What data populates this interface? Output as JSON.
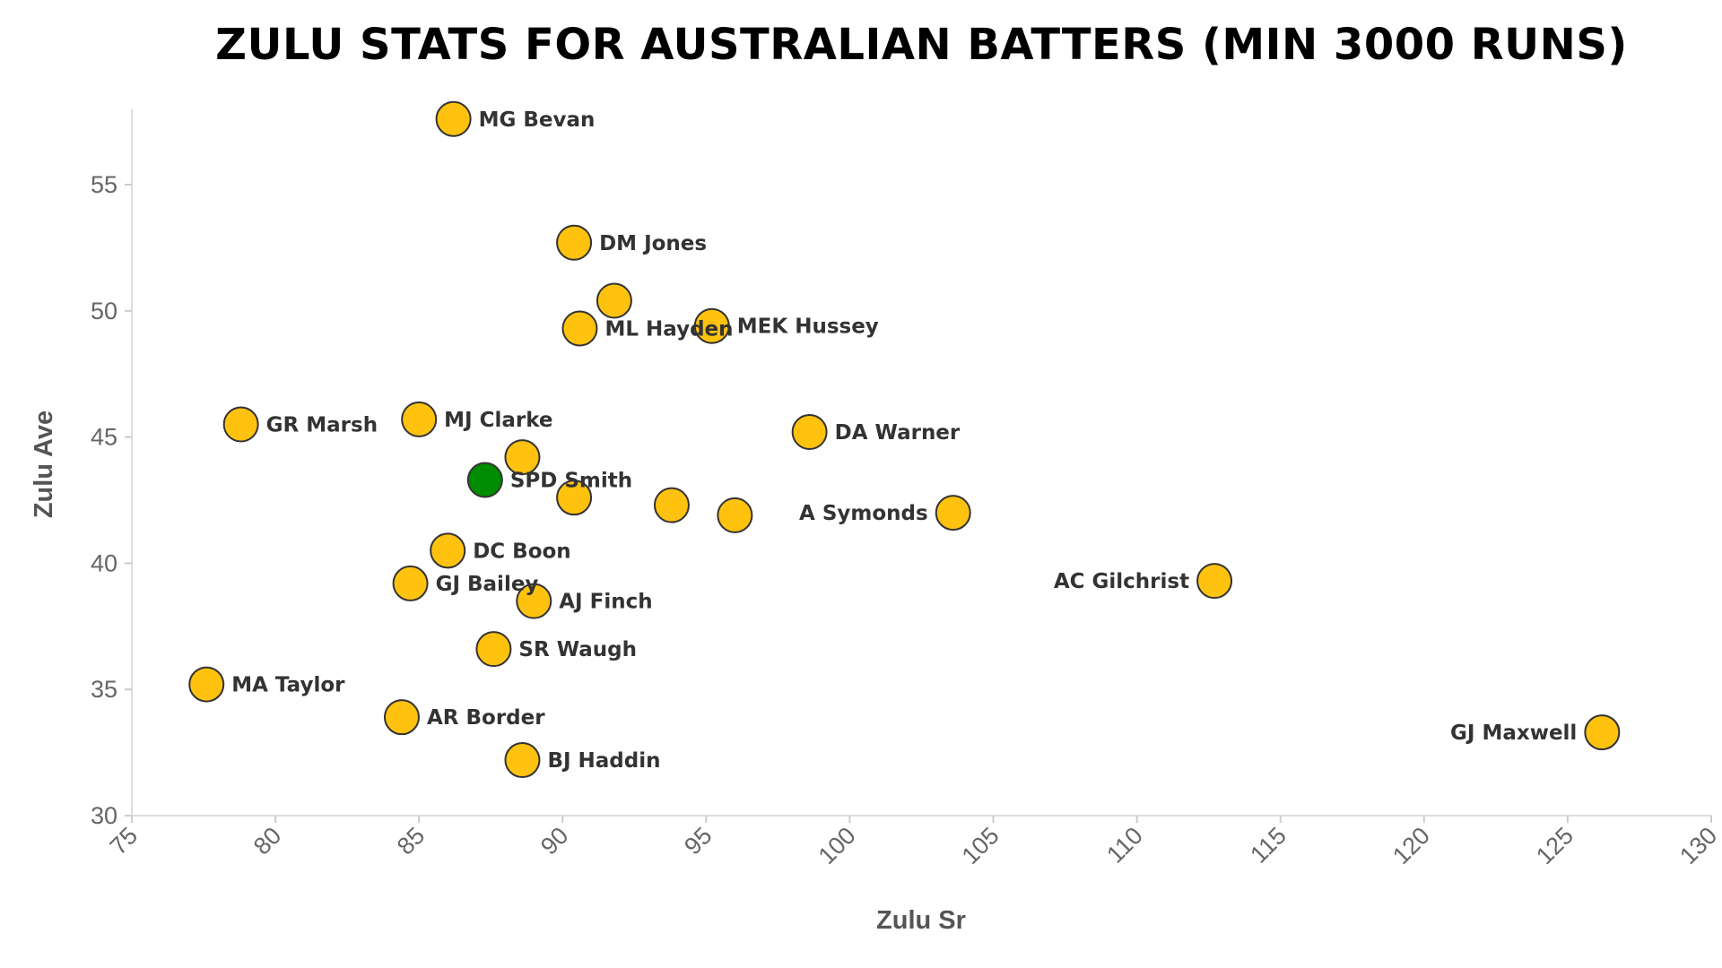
{
  "chart_data": {
    "type": "scatter",
    "title": "Zulu Stats for Australian Batters (min 3000 runs)",
    "xlabel": "Zulu Sr",
    "ylabel": "Zulu Ave",
    "xlim": [
      75,
      130
    ],
    "ylim": [
      30,
      58
    ],
    "xticks": [
      75,
      80,
      85,
      90,
      95,
      100,
      105,
      110,
      115,
      120,
      125,
      130
    ],
    "yticks": [
      30,
      35,
      40,
      45,
      50,
      55
    ],
    "grid": false,
    "colors": {
      "default": "#FFC20E",
      "highlight": "#008C00",
      "outline": "#333333"
    },
    "points": [
      {
        "name": "MG Bevan",
        "x": 86.2,
        "y": 57.6,
        "label_side": "right"
      },
      {
        "name": "DM Jones",
        "x": 90.4,
        "y": 52.7,
        "label_side": "right"
      },
      {
        "name": "",
        "x": 91.8,
        "y": 50.4,
        "label_side": "right"
      },
      {
        "name": "ML Hayden",
        "x": 90.6,
        "y": 49.3,
        "label_side": "right"
      },
      {
        "name": "MEK Hussey",
        "x": 95.2,
        "y": 49.4,
        "label_side": "right"
      },
      {
        "name": "GR Marsh",
        "x": 78.8,
        "y": 45.5,
        "label_side": "right"
      },
      {
        "name": "MJ Clarke",
        "x": 85.0,
        "y": 45.7,
        "label_side": "right"
      },
      {
        "name": "DA Warner",
        "x": 98.6,
        "y": 45.2,
        "label_side": "right"
      },
      {
        "name": "",
        "x": 88.6,
        "y": 44.2,
        "label_side": "right"
      },
      {
        "name": "SPD Smith",
        "x": 87.3,
        "y": 43.3,
        "label_side": "right",
        "highlight": true
      },
      {
        "name": "",
        "x": 90.4,
        "y": 42.6,
        "label_side": "right"
      },
      {
        "name": "",
        "x": 93.8,
        "y": 42.3,
        "label_side": "right"
      },
      {
        "name": "",
        "x": 96.0,
        "y": 41.9,
        "label_side": "right"
      },
      {
        "name": "A Symonds",
        "x": 103.6,
        "y": 42.0,
        "label_side": "left"
      },
      {
        "name": "DC Boon",
        "x": 86.0,
        "y": 40.5,
        "label_side": "right"
      },
      {
        "name": "GJ Bailey",
        "x": 84.7,
        "y": 39.2,
        "label_side": "right"
      },
      {
        "name": "AJ Finch",
        "x": 89.0,
        "y": 38.5,
        "label_side": "right"
      },
      {
        "name": "AC Gilchrist",
        "x": 112.7,
        "y": 39.3,
        "label_side": "left"
      },
      {
        "name": "SR Waugh",
        "x": 87.6,
        "y": 36.6,
        "label_side": "right"
      },
      {
        "name": "MA Taylor",
        "x": 77.6,
        "y": 35.2,
        "label_side": "right"
      },
      {
        "name": "AR Border",
        "x": 84.4,
        "y": 33.9,
        "label_side": "right"
      },
      {
        "name": "BJ Haddin",
        "x": 88.6,
        "y": 32.2,
        "label_side": "right"
      },
      {
        "name": "GJ Maxwell",
        "x": 126.2,
        "y": 33.3,
        "label_side": "left"
      }
    ]
  }
}
